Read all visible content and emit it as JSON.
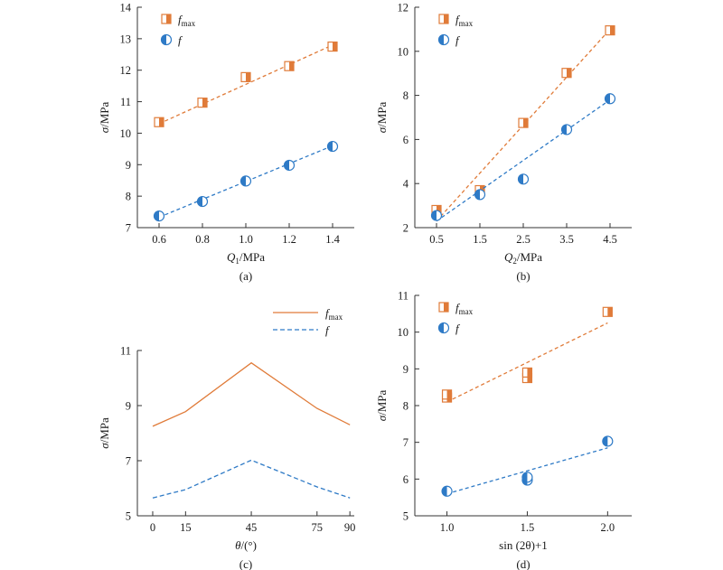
{
  "colors": {
    "orange": "#E07B39",
    "blue": "#2E7AC6",
    "axis": "#333333"
  },
  "legend_labels": {
    "fmax_base": "f",
    "fmax_sub": "max",
    "f": "f"
  },
  "chart_data": [
    {
      "id": "a",
      "type": "scatter",
      "caption": "(a)",
      "xlabel": {
        "base": "Q",
        "sub": "1",
        "unit": "/MPa"
      },
      "ylabel": {
        "base": "σ",
        "unit": "/MPa"
      },
      "xlim": [
        0.5,
        1.5
      ],
      "ylim": [
        7,
        14
      ],
      "xticks": [
        0.6,
        0.8,
        1.0,
        1.2,
        1.4
      ],
      "xtick_labels": [
        "0.6",
        "0.8",
        "1.0",
        "1.2",
        "1.4"
      ],
      "yticks": [
        7,
        8,
        9,
        10,
        11,
        12,
        13,
        14
      ],
      "ytick_labels": [
        "7",
        "8",
        "9",
        "10",
        "11",
        "12",
        "13",
        "14"
      ],
      "legend": true,
      "series": [
        {
          "name": "fmax",
          "marker": "square",
          "x": [
            0.6,
            0.8,
            1.0,
            1.2,
            1.4
          ],
          "y": [
            10.35,
            10.97,
            11.78,
            12.13,
            12.75
          ],
          "fit": [
            [
              0.6,
              10.3
            ],
            [
              1.4,
              12.8
            ]
          ]
        },
        {
          "name": "f",
          "marker": "circle",
          "x": [
            0.6,
            0.8,
            1.0,
            1.2,
            1.4
          ],
          "y": [
            7.37,
            7.83,
            8.48,
            8.98,
            9.58
          ],
          "fit": [
            [
              0.6,
              7.33
            ],
            [
              1.4,
              9.6
            ]
          ]
        }
      ]
    },
    {
      "id": "b",
      "type": "scatter",
      "caption": "(b)",
      "xlabel": {
        "base": "Q",
        "sub": "2",
        "unit": "/MPa"
      },
      "ylabel": {
        "base": "σ",
        "unit": "/MPa"
      },
      "xlim": [
        0,
        5
      ],
      "ylim": [
        2,
        12
      ],
      "xticks": [
        0.5,
        1.5,
        2.5,
        3.5,
        4.5
      ],
      "xtick_labels": [
        "0.5",
        "1.5",
        "2.5",
        "3.5",
        "4.5"
      ],
      "yticks": [
        2,
        4,
        6,
        8,
        10,
        12
      ],
      "ytick_labels": [
        "2",
        "4",
        "6",
        "8",
        "10",
        "12"
      ],
      "legend": true,
      "series": [
        {
          "name": "fmax",
          "marker": "square",
          "x": [
            0.5,
            1.5,
            2.5,
            3.5,
            4.5
          ],
          "y": [
            2.8,
            3.7,
            6.75,
            9.02,
            10.95
          ],
          "fit": [
            [
              0.5,
              2.3
            ],
            [
              4.5,
              11.0
            ]
          ]
        },
        {
          "name": "f",
          "marker": "circle",
          "x": [
            0.5,
            1.5,
            2.5,
            3.5,
            4.5
          ],
          "y": [
            2.55,
            3.5,
            4.2,
            6.45,
            7.85
          ],
          "fit": [
            [
              0.5,
              2.3
            ],
            [
              4.5,
              7.8
            ]
          ]
        }
      ]
    },
    {
      "id": "c",
      "type": "line",
      "caption": "(c)",
      "xlabel": {
        "base": "θ",
        "sub": "",
        "unit": "/(°)"
      },
      "ylabel": {
        "base": "σ",
        "unit": "/MPa"
      },
      "xlim": [
        -7,
        92
      ],
      "ylim": [
        5,
        11
      ],
      "xticks": [
        0,
        15,
        45,
        75,
        90
      ],
      "xtick_labels": [
        "0",
        "15",
        "45",
        "75",
        "90"
      ],
      "yticks": [
        5,
        7,
        9,
        11
      ],
      "ytick_labels": [
        "5",
        "7",
        "9",
        "11"
      ],
      "legend": true,
      "series": [
        {
          "name": "fmax",
          "style": "solid",
          "x": [
            0,
            15,
            45,
            75,
            90
          ],
          "y": [
            8.25,
            8.78,
            10.55,
            8.9,
            8.3
          ]
        },
        {
          "name": "f",
          "style": "dashed",
          "x": [
            0,
            15,
            45,
            75,
            90
          ],
          "y": [
            5.65,
            5.95,
            7.02,
            6.05,
            5.65
          ]
        }
      ]
    },
    {
      "id": "d",
      "type": "scatter",
      "caption": "(d)",
      "xlabel": {
        "base": "sin (2θ)+1",
        "sub": "",
        "unit": ""
      },
      "ylabel": {
        "base": "σ",
        "unit": "/MPa"
      },
      "xlim": [
        0.8,
        2.15
      ],
      "ylim": [
        5,
        11
      ],
      "xticks": [
        1.0,
        1.5,
        2.0
      ],
      "xtick_labels": [
        "1.0",
        "1.5",
        "2.0"
      ],
      "yticks": [
        5,
        6,
        7,
        8,
        9,
        10,
        11
      ],
      "ytick_labels": [
        "5",
        "6",
        "7",
        "8",
        "9",
        "10",
        "11"
      ],
      "legend": true,
      "series": [
        {
          "name": "fmax",
          "marker": "square",
          "x": [
            1.0,
            1.0,
            1.5,
            1.5,
            2.0
          ],
          "y": [
            8.22,
            8.3,
            8.75,
            8.9,
            10.55
          ],
          "fit": [
            [
              1.0,
              8.1
            ],
            [
              2.0,
              10.25
            ]
          ]
        },
        {
          "name": "f",
          "marker": "circle",
          "x": [
            1.0,
            1.5,
            1.5,
            2.0
          ],
          "y": [
            5.67,
            5.97,
            6.05,
            7.03
          ],
          "fit": [
            [
              1.0,
              5.6
            ],
            [
              2.0,
              6.85
            ]
          ]
        }
      ]
    }
  ]
}
